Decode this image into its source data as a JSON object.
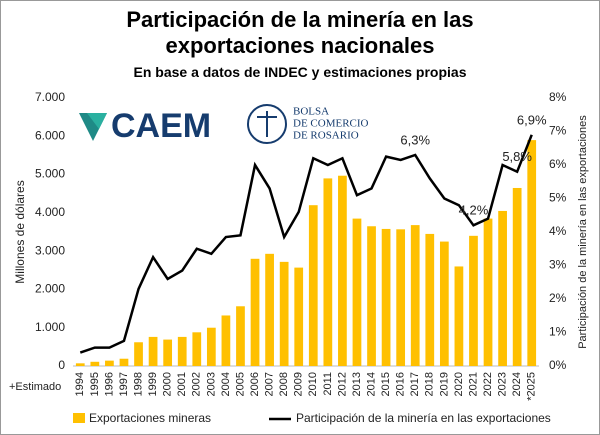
{
  "chart_data": {
    "type": "bar",
    "title": "Participación de la minería en las exportaciones nacionales",
    "subtitle": "En base a datos de INDEC y estimaciones propias",
    "logos": {
      "caem": "CAEM",
      "bolsa": [
        "BOLSA",
        "DE COMERCIO",
        "DE ROSARIO"
      ]
    },
    "annotation": "+Estimado",
    "y_label": "Millones de dólares",
    "y2_label": "Participación de la minería en las exportaciones",
    "categories": [
      "1994",
      "1995",
      "1996",
      "1997",
      "1998",
      "1999",
      "2000",
      "2001",
      "2002",
      "2003",
      "2004",
      "2005",
      "2006",
      "2007",
      "2008",
      "2009",
      "2010",
      "2011",
      "2012",
      "2013",
      "2014",
      "2015",
      "2016",
      "2017",
      "2018",
      "2019",
      "2020",
      "2021",
      "2022",
      "2023",
      "2024",
      "*2025"
    ],
    "series": [
      {
        "name": "Exportaciones mineras",
        "type": "bar",
        "color": "#ffc000",
        "values": [
          70,
          110,
          140,
          190,
          620,
          760,
          690,
          760,
          880,
          1000,
          1320,
          1560,
          2800,
          2930,
          2720,
          2570,
          4200,
          4900,
          4970,
          3850,
          3650,
          3580,
          3570,
          3680,
          3450,
          3250,
          2600,
          3400,
          3850,
          4050,
          4650,
          5900
        ]
      },
      {
        "name": "Participación de la minería en las exportaciones",
        "type": "line",
        "color": "#000000",
        "axis": "y2",
        "values": [
          0.4,
          0.55,
          0.55,
          0.75,
          2.3,
          3.25,
          2.6,
          2.85,
          3.5,
          3.35,
          3.85,
          3.9,
          6.0,
          5.3,
          3.85,
          4.6,
          6.2,
          6.0,
          6.2,
          5.1,
          5.3,
          6.25,
          6.15,
          6.3,
          5.6,
          5.0,
          4.8,
          4.2,
          4.4,
          6.0,
          5.8,
          6.9
        ],
        "value_labels": [
          null,
          null,
          null,
          null,
          null,
          null,
          null,
          null,
          null,
          null,
          null,
          null,
          null,
          null,
          null,
          null,
          null,
          null,
          null,
          null,
          null,
          null,
          null,
          "6,3%",
          null,
          null,
          null,
          "4,2%",
          null,
          null,
          "5,8%",
          "6,9%"
        ]
      }
    ],
    "ylim": [
      0,
      7000
    ],
    "yticks": [
      0,
      {
        "value": 1000,
        "label": "1.000"
      },
      {
        "value": 2000,
        "label": "2.000"
      },
      {
        "value": 3000,
        "label": "3.000"
      },
      {
        "value": 4000,
        "label": "4.000"
      },
      {
        "value": 5000,
        "label": "5.000"
      },
      {
        "value": 6000,
        "label": "6.000"
      },
      {
        "value": 7000,
        "label": "7.000"
      }
    ],
    "y2lim": [
      0,
      8
    ],
    "y2ticks": [
      {
        "value": 0,
        "label": "0%"
      },
      {
        "value": 1,
        "label": "1%"
      },
      {
        "value": 2,
        "label": "2%"
      },
      {
        "value": 3,
        "label": "3%"
      },
      {
        "value": 4,
        "label": "4%"
      },
      {
        "value": 5,
        "label": "5%"
      },
      {
        "value": 6,
        "label": "6%"
      },
      {
        "value": 7,
        "label": "7%"
      },
      {
        "value": 8,
        "label": "8%"
      }
    ]
  }
}
